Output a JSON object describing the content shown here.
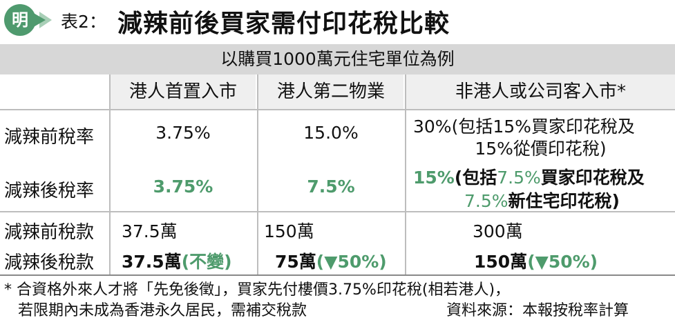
{
  "header": {
    "logo_char": "明",
    "table_label": "表2：",
    "title": "減辣前後買家需付印花稅比較"
  },
  "table": {
    "band": "以購買1000萬元住宅單位為例",
    "columns": [
      "港人首置入市",
      "港人第二物業",
      "非港人或公司客入市*"
    ],
    "rows": {
      "before_rate": {
        "label": "減辣前稅率",
        "c1": "3.75%",
        "c2": "15.0%",
        "c3_line1": "30%(包括15%買家印花稅及",
        "c3_line2": "15%從價印花稅)"
      },
      "after_rate": {
        "label": "減辣後稅率",
        "c1": "3.75%",
        "c2": "7.5%",
        "c3_line1_a": "15%",
        "c3_line1_b": "(包括",
        "c3_line1_c": "7.5%",
        "c3_line1_d": "買家印花稅及",
        "c3_line2_a": "7.5%",
        "c3_line2_b": "新住宅印花稅)"
      },
      "before_amount": {
        "label": "減辣前稅款",
        "c1": "37.5萬",
        "c2": "150萬",
        "c3": "300萬"
      },
      "after_amount": {
        "label": "減辣後稅款",
        "c1_a": "37.5萬",
        "c1_b": "(不變)",
        "c2_a": "75萬",
        "c2_b": "(▼50%)",
        "c3_a": "150萬",
        "c3_b": "(▼50%)"
      }
    }
  },
  "footnote": {
    "line1": "* 合資格外來人才將「先免後徵」，買家先付樓價3.75%印花稅(相若港人)，",
    "line2": "若限期內未成為香港永久居民，需補交稅款",
    "source": "資料來源：本報按稅率計算"
  },
  "colors": {
    "accent_green": "#4e9b6c",
    "band_gray": "#d7d7d7"
  }
}
